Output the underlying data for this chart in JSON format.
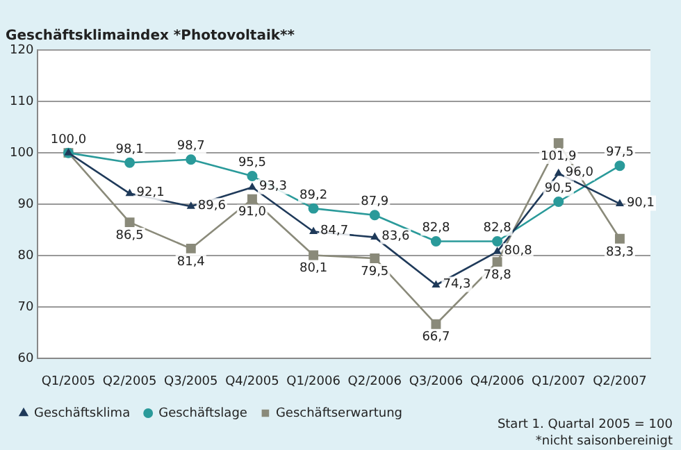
{
  "chart_data": {
    "type": "line",
    "title": "Geschäftsklimaindex *Photovoltaik**",
    "categories": [
      "Q1/2005",
      "Q2/2005",
      "Q3/2005",
      "Q4/2005",
      "Q1/2006",
      "Q2/2006",
      "Q3/2006",
      "Q4/2006",
      "Q1/2007",
      "Q2/2007"
    ],
    "series": [
      {
        "name": "Geschäftsklima",
        "color": "#1f3a5a",
        "marker": "triangle",
        "values": [
          100.0,
          92.1,
          89.6,
          93.3,
          84.7,
          83.6,
          74.3,
          80.8,
          96.0,
          90.1
        ],
        "value_labels": [
          "100,0",
          "92,1",
          "89,6",
          "93,3",
          "84,7",
          "83,6",
          "74,3",
          "80,8",
          "96,0",
          "90,1"
        ]
      },
      {
        "name": "Geschäftslage",
        "color": "#2a9a9a",
        "marker": "circle",
        "values": [
          100.0,
          98.1,
          98.7,
          95.5,
          89.2,
          87.9,
          82.8,
          82.8,
          90.5,
          97.5
        ],
        "value_labels": [
          null,
          "98,1",
          "98,7",
          "95,5",
          "89,2",
          "87,9",
          "82,8",
          "82,8",
          "90,5",
          "97,5"
        ]
      },
      {
        "name": "Geschäftserwartung",
        "color": "#8a8a7a",
        "marker": "square",
        "values": [
          100.0,
          86.5,
          81.4,
          91.0,
          80.1,
          79.5,
          66.7,
          78.8,
          101.9,
          83.3
        ],
        "value_labels": [
          null,
          "86,5",
          "81,4",
          "91,0",
          "80,1",
          "79,5",
          "66,7",
          "78,8",
          "101,9",
          "83,3"
        ]
      }
    ],
    "ylim": [
      60,
      120
    ],
    "yticks": [
      60,
      70,
      80,
      90,
      100,
      110,
      120
    ],
    "grid": "y",
    "legend": "bottom left",
    "annotations": [
      "Start 1. Quartal 2005 = 100",
      "*nicht saisonbereinigt"
    ]
  }
}
